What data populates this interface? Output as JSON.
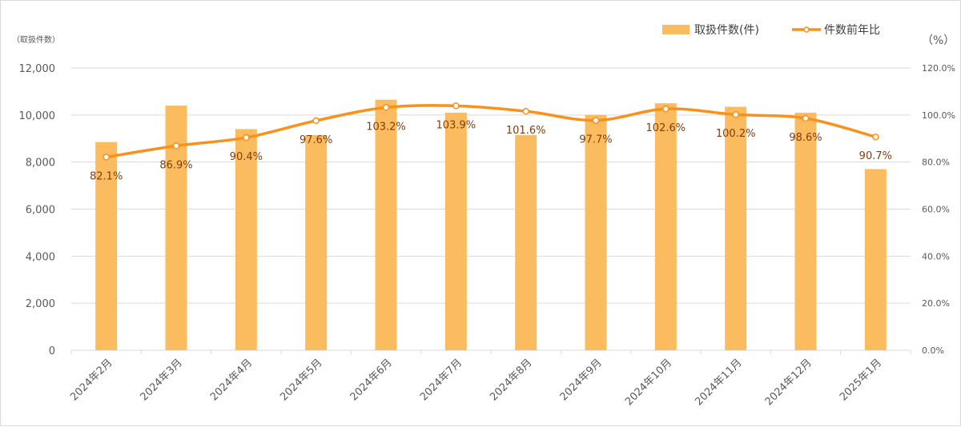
{
  "chart_data": {
    "type": "bar",
    "categories": [
      "2024年2月",
      "2024年3月",
      "2024年4月",
      "2024年5月",
      "2024年6月",
      "2024年7月",
      "2024年8月",
      "2024年9月",
      "2024年10月",
      "2024年11月",
      "2024年12月",
      "2025年1月"
    ],
    "series": [
      {
        "name": "取扱件数(件)",
        "type": "bar",
        "axis": "left",
        "color": "#fbbc5f",
        "values": [
          8850,
          10400,
          9400,
          9150,
          10650,
          10100,
          9150,
          10000,
          10500,
          10350,
          10100,
          7700
        ]
      },
      {
        "name": "件数前年比",
        "type": "line",
        "axis": "right",
        "color": "#f9911c",
        "values": [
          82.1,
          86.9,
          90.4,
          97.6,
          103.2,
          103.9,
          101.6,
          97.7,
          102.6,
          100.2,
          98.6,
          90.7
        ],
        "data_labels": [
          "82.1%",
          "86.9%",
          "90.4%",
          "97.6%",
          "103.2%",
          "103.9%",
          "101.6%",
          "97.7%",
          "102.6%",
          "100.2%",
          "98.6%",
          "90.7%"
        ]
      }
    ],
    "ylim": [
      0,
      12000
    ],
    "y_ticks": [
      "0",
      "2,000",
      "4,000",
      "6,000",
      "8,000",
      "10,000",
      "12,000"
    ],
    "y2lim": [
      0,
      120
    ],
    "y2_ticks": [
      "0.0%",
      "20.0%",
      "40.0%",
      "60.0%",
      "80.0%",
      "100.0%",
      "120.0%"
    ],
    "ylabel": "（取扱件数）",
    "y2label": "（%）",
    "grid": true,
    "legend_position": "top-right"
  }
}
